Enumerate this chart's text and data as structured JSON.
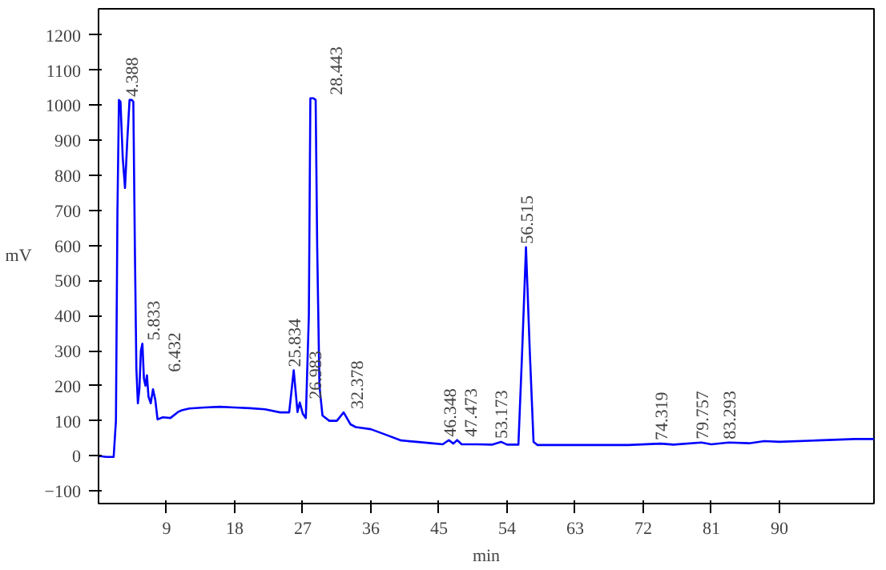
{
  "chart_data": {
    "type": "line",
    "xlabel": "min",
    "ylabel": "mV",
    "xlim": [
      0,
      102.5
    ],
    "ylim": [
      -136,
      1275
    ],
    "xticks": [
      9,
      18,
      27,
      36,
      45,
      54,
      63,
      72,
      81,
      90
    ],
    "yticks": [
      -100,
      0,
      100,
      200,
      300,
      400,
      500,
      600,
      700,
      800,
      900,
      1000,
      1100,
      1200
    ],
    "grid": false,
    "marker": "none",
    "line_style": "solid",
    "series": [
      {
        "color": "#0000ff",
        "x": [
          0,
          1,
          2,
          2.3,
          2.5,
          2.7,
          2.9,
          3.2,
          3.5,
          3.8,
          4.1,
          4.4,
          4.6,
          4.8,
          5.0,
          5.2,
          5.4,
          5.6,
          5.8,
          6.0,
          6.2,
          6.4,
          6.6,
          6.9,
          7.2,
          7.5,
          7.8,
          8.5,
          9.5,
          10.5,
          11,
          12,
          14,
          16,
          18,
          20,
          22,
          24,
          25.2,
          25.8,
          26.3,
          26.6,
          27.0,
          27.4,
          27.8,
          28.0,
          28.2,
          28.4,
          28.7,
          28.9,
          29.2,
          29.6,
          30.5,
          31.5,
          32.4,
          33.3,
          34,
          36,
          38,
          40,
          42,
          44,
          45.5,
          46.3,
          46.9,
          47.4,
          48,
          50,
          52,
          53.2,
          54,
          55.5,
          56,
          56.5,
          57,
          57.5,
          58,
          62,
          66,
          70,
          74.3,
          76,
          79.7,
          81,
          83.3,
          86,
          88,
          90,
          95,
          100,
          102.5
        ],
        "values": [
          0,
          -3,
          -3,
          100,
          700,
          1015,
          1010,
          850,
          764,
          900,
          1015,
          1015,
          1010,
          600,
          250,
          150,
          190,
          300,
          320,
          220,
          200,
          230,
          170,
          150,
          190,
          160,
          104,
          110,
          108,
          125,
          130,
          135,
          138,
          140,
          138,
          136,
          133,
          124,
          124,
          244,
          125,
          152,
          120,
          108,
          400,
          1020,
          1020,
          1020,
          1015,
          600,
          200,
          115,
          100,
          100,
          124,
          90,
          82,
          76,
          60,
          44,
          40,
          36,
          33,
          45,
          35,
          45,
          33,
          33,
          32,
          40,
          32,
          32,
          300,
          595,
          300,
          40,
          31,
          31,
          31,
          31,
          35,
          32,
          38,
          33,
          38,
          36,
          42,
          40,
          44,
          48,
          48
        ]
      }
    ],
    "annotations": [
      {
        "text": "4.388",
        "x": 4.388,
        "y": 1015
      },
      {
        "text": "5.833",
        "x": 5.833,
        "y": 320
      },
      {
        "text": "6.432",
        "x": 6.432,
        "y": 230
      },
      {
        "text": "25.834",
        "x": 25.834,
        "y": 244
      },
      {
        "text": "26.983",
        "x": 26.983,
        "y": 152
      },
      {
        "text": "28.443",
        "x": 28.443,
        "y": 1020
      },
      {
        "text": "32.378",
        "x": 32.378,
        "y": 124
      },
      {
        "text": "46.348",
        "x": 46.348,
        "y": 45
      },
      {
        "text": "47.473",
        "x": 47.473,
        "y": 45
      },
      {
        "text": "53.173",
        "x": 53.173,
        "y": 40
      },
      {
        "text": "56.515",
        "x": 56.515,
        "y": 595
      },
      {
        "text": "74.319",
        "x": 74.319,
        "y": 35
      },
      {
        "text": "79.757",
        "x": 79.757,
        "y": 38
      },
      {
        "text": "83.293",
        "x": 83.293,
        "y": 38
      }
    ]
  }
}
